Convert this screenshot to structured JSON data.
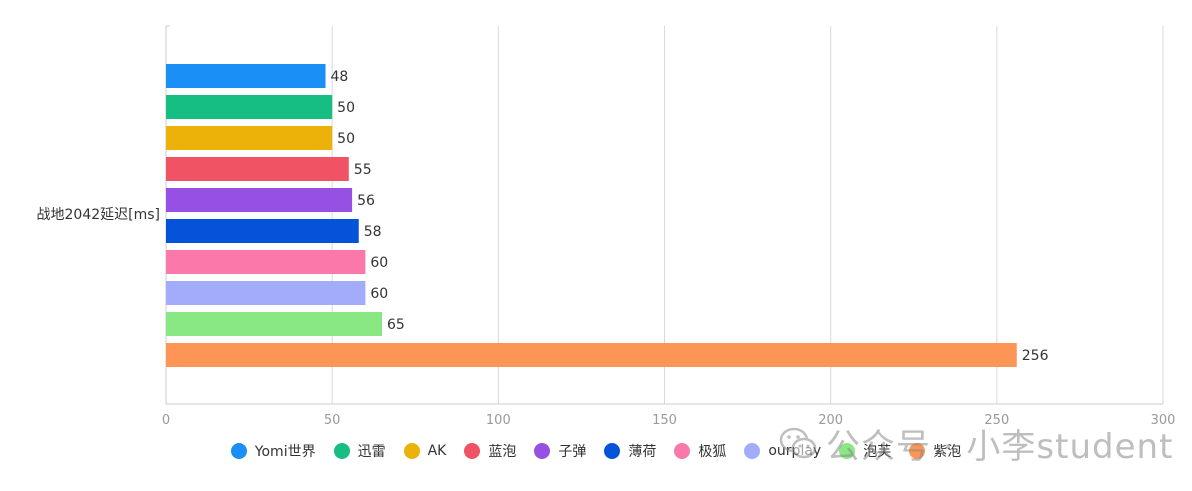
{
  "chart_data": {
    "type": "bar",
    "orientation": "horizontal",
    "categories": [
      "战地2042延迟[ms]"
    ],
    "series": [
      {
        "name": "Yomi世界",
        "values": [
          48
        ],
        "color": "#1a8ff5"
      },
      {
        "name": "迅雷",
        "values": [
          50
        ],
        "color": "#16be84"
      },
      {
        "name": "AK",
        "values": [
          50
        ],
        "color": "#ecb20a"
      },
      {
        "name": "蓝泡",
        "values": [
          55
        ],
        "color": "#f05464"
      },
      {
        "name": "子弹",
        "values": [
          56
        ],
        "color": "#9650e4"
      },
      {
        "name": "薄荷",
        "values": [
          58
        ],
        "color": "#0553d8"
      },
      {
        "name": "极狐",
        "values": [
          60
        ],
        "color": "#fb78ab"
      },
      {
        "name": "ourplay",
        "values": [
          60
        ],
        "color": "#a2acfb"
      },
      {
        "name": "泡芙",
        "values": [
          65
        ],
        "color": "#89e884"
      },
      {
        "name": "紫泡",
        "values": [
          256
        ],
        "color": "#fd9556"
      }
    ],
    "xlim": [
      0,
      300
    ],
    "xticks": [
      "0",
      "50",
      "100",
      "150",
      "200",
      "250",
      "300"
    ],
    "grid": true,
    "legend_position": "bottom"
  },
  "watermark": {
    "text": "公众号 · 小李student",
    "icon": "wechat-icon"
  }
}
